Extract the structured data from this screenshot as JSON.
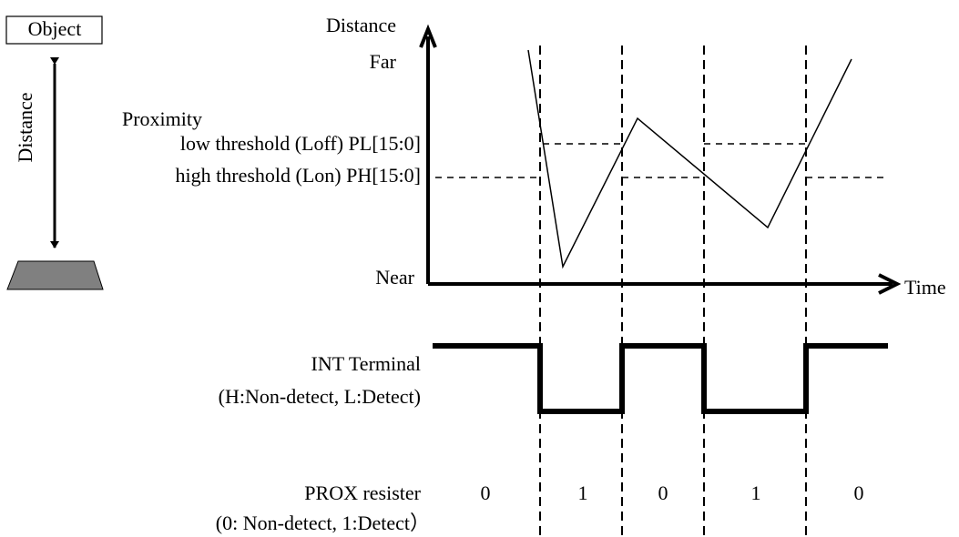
{
  "object_label": "Object",
  "side_axis_label": "Distance",
  "graph": {
    "y_axis_label": "Distance",
    "far_label": "Far",
    "near_label": "Near",
    "x_axis_label": "Time",
    "proximity_label": "Proximity",
    "low_threshold_label": "low threshold (Loff) PL[15:0]",
    "high_threshold_label": "high threshold (Lon) PH[15:0]"
  },
  "int_terminal": {
    "label": "INT Terminal",
    "sublabel": "(H:Non-detect, L:Detect)"
  },
  "prox_register": {
    "label": "PROX resister",
    "sublabel": "(0: Non-detect, 1:Detect）",
    "states": [
      "0",
      "1",
      "0",
      "1",
      "0"
    ]
  }
}
